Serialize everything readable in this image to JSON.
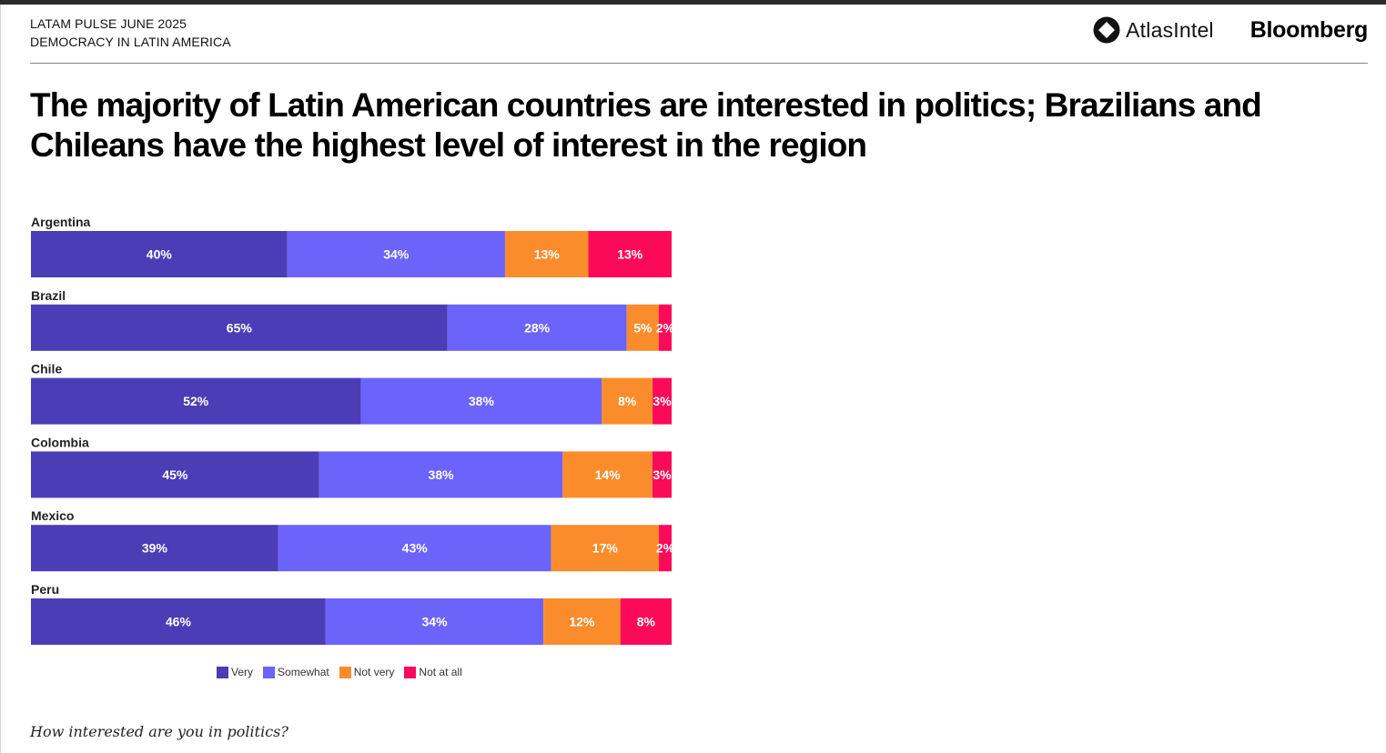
{
  "header": {
    "line1": "LATAM PULSE JUNE 2025",
    "line2": "DEMOCRACY IN LATIN AMERICA",
    "logo_atlas": "AtlasIntel",
    "logo_bloomberg": "Bloomberg"
  },
  "title": "The majority of Latin American countries are interested in politics; Brazilians and Chileans have the highest level of interest in the region",
  "question": "How interested are you in politics?",
  "colors": {
    "very": "#4b3db5",
    "somewhat": "#6c63fb",
    "not_very": "#fb8c2c",
    "not_at_all": "#fb0a5a"
  },
  "chart_data": {
    "type": "bar",
    "orientation": "horizontal",
    "stacked": true,
    "categories": [
      "Argentina",
      "Brazil",
      "Chile",
      "Colombia",
      "Mexico",
      "Peru"
    ],
    "series": [
      {
        "name": "Very",
        "color": "#4b3db5",
        "values": [
          40,
          65,
          52,
          45,
          39,
          46
        ],
        "labels": [
          "40%",
          "65%",
          "52%",
          "45%",
          "39%",
          "46%"
        ]
      },
      {
        "name": "Somewhat",
        "color": "#6c63fb",
        "values": [
          34,
          28,
          38,
          38,
          43,
          34
        ],
        "labels": [
          "34%",
          "28%",
          "38%",
          "38%",
          "43%",
          "34%"
        ]
      },
      {
        "name": "Not very",
        "color": "#fb8c2c",
        "values": [
          13,
          5,
          8,
          14,
          17,
          12
        ],
        "labels": [
          "13%",
          "5%",
          "8%",
          "14%",
          "17%",
          "12%"
        ]
      },
      {
        "name": "Not at all",
        "color": "#fb0a5a",
        "values": [
          13,
          2,
          3,
          3,
          2,
          8
        ],
        "labels": [
          "13%",
          "2%",
          "3%",
          "3%",
          "2%",
          "8%"
        ]
      }
    ],
    "legend_position": "bottom",
    "grid": false,
    "value_labels": "inside bars, percent"
  }
}
